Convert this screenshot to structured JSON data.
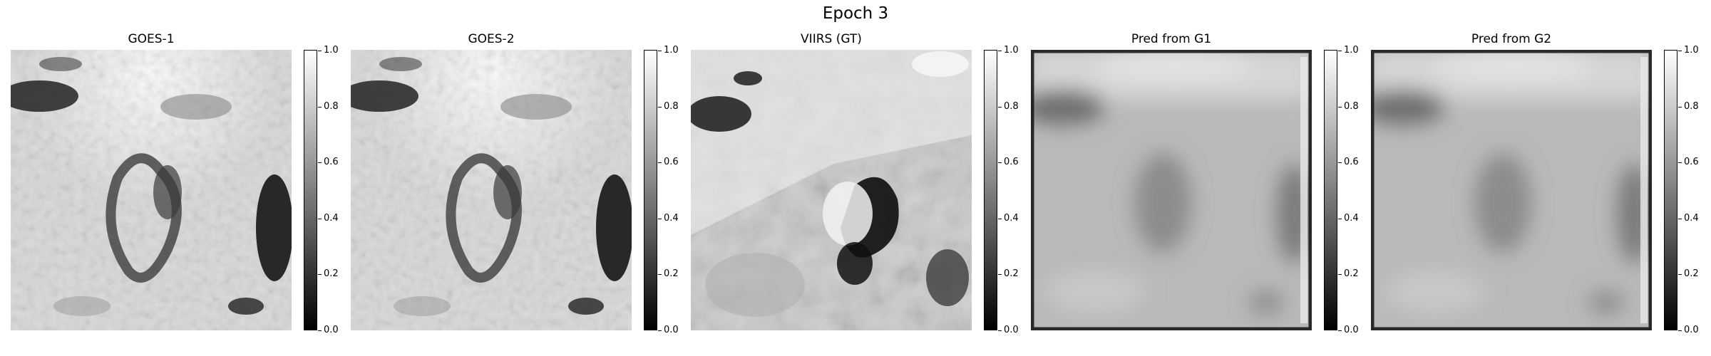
{
  "figure": {
    "title": "Epoch 3"
  },
  "panels": [
    {
      "title": "GOES-1",
      "style": "pixelated-bright"
    },
    {
      "title": "GOES-2",
      "style": "pixelated-bright"
    },
    {
      "title": "VIIRS (GT)",
      "style": "sharp-detailed"
    },
    {
      "title": "Pred from G1",
      "style": "smooth-blurred"
    },
    {
      "title": "Pred from G2",
      "style": "smooth-blurred"
    }
  ],
  "colorbar": {
    "colormap": "gray",
    "ticks": [
      "0.0",
      "0.2",
      "0.4",
      "0.6",
      "0.8",
      "1.0"
    ],
    "tick_values": [
      0,
      0.2,
      0.4,
      0.6,
      0.8,
      1.0
    ],
    "range": [
      0,
      1
    ]
  }
}
